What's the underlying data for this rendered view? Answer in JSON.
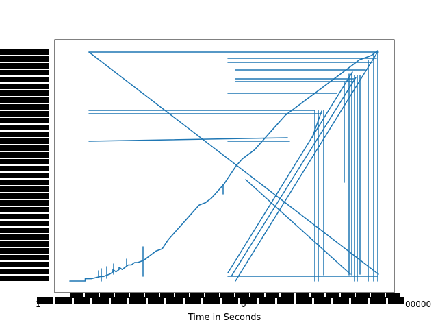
{
  "chart_data": {
    "type": "line",
    "title": "",
    "xlabel": "Time in Seconds",
    "ylabel": "",
    "x_tick_labels": {
      "left": "1",
      "middle": "0",
      "right": "00000"
    },
    "line_color": "#1f77b4",
    "grid": false,
    "legend": "none",
    "series": [
      {
        "x": [
          0,
          5,
          5,
          7,
          10,
          11,
          13,
          14,
          14,
          15,
          16,
          16,
          17,
          18,
          18,
          19,
          20,
          21,
          22,
          24,
          26,
          28,
          30,
          30,
          32,
          34,
          36,
          38,
          40,
          42,
          44,
          46,
          48,
          50,
          52,
          54,
          56,
          58,
          60,
          62,
          64,
          66,
          68,
          70,
          72,
          74,
          76,
          78,
          80,
          82,
          84,
          86,
          88,
          90,
          92,
          94,
          96,
          98,
          100
        ],
        "y": [
          0,
          0,
          1,
          1,
          2,
          2,
          3,
          4,
          5,
          4,
          5,
          6,
          5,
          6,
          6,
          7,
          7,
          8,
          8,
          9,
          11,
          13,
          14,
          14,
          18,
          21,
          24,
          27,
          30,
          33,
          34,
          36,
          39,
          42,
          46,
          50,
          53,
          55,
          57,
          60,
          63,
          66,
          69,
          72,
          74,
          76,
          78,
          80,
          82,
          84,
          86,
          88,
          90,
          92,
          94,
          96,
          97,
          98,
          100
        ]
      }
    ]
  }
}
